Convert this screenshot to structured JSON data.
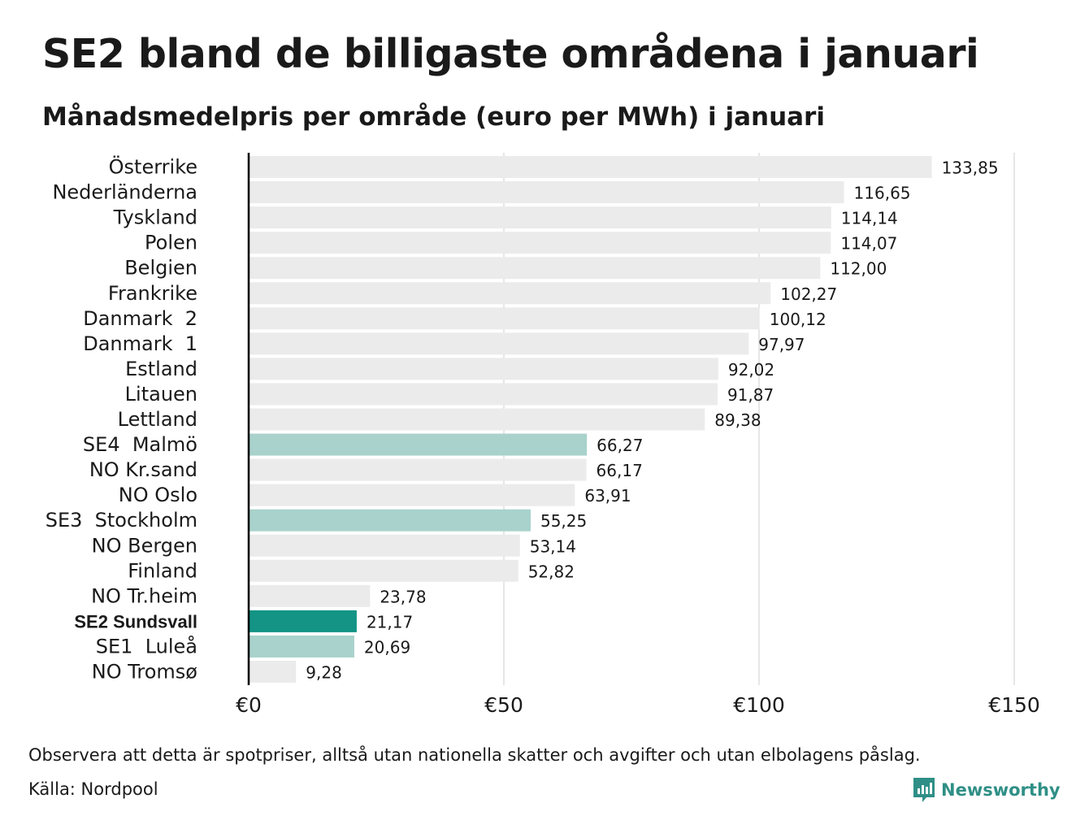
{
  "title": "SE2 bland de billigaste områdena i januari",
  "subtitle": "Månadsmedelpris per område (euro per MWh) i januari",
  "note": "Observera att detta är spotpriser, alltså utan nationella skatter och avgifter och utan elbolagens påslag.",
  "source": "Källa: Nordpool",
  "logo_text": "Newsworthy",
  "colors": {
    "default": "#ebebeb",
    "swedish": "#a8d2cb",
    "highlight": "#139485",
    "grid": "#cccccc",
    "axis": "#000000",
    "logo": "#2f8f86"
  },
  "chart_data": {
    "type": "bar",
    "orientation": "horizontal",
    "categories": [
      "Österrike",
      "Nederländerna",
      "Tyskland",
      "Polen",
      "Belgien",
      "Frankrike",
      "Danmark  2",
      "Danmark  1",
      "Estland",
      "Litauen",
      "Lettland",
      "SE4  Malmö",
      "NO Kr.sand",
      "NO Oslo",
      "SE3  Stockholm",
      "NO Bergen",
      "Finland",
      "NO Tr.heim",
      "SE2 Sundsvall",
      "SE1  Luleå",
      "NO Tromsø"
    ],
    "values": [
      133.85,
      116.65,
      114.14,
      114.07,
      112.0,
      102.27,
      100.12,
      97.97,
      92.02,
      91.87,
      89.38,
      66.27,
      66.17,
      63.91,
      55.25,
      53.14,
      52.82,
      23.78,
      21.17,
      20.69,
      9.28
    ],
    "value_labels": [
      "133,85",
      "116,65",
      "114,14",
      "114,07",
      "112,00",
      "102,27",
      "100,12",
      "97,97",
      "92,02",
      "91,87",
      "89,38",
      "66,27",
      "66,17",
      "63,91",
      "55,25",
      "53,14",
      "52,82",
      "23,78",
      "21,17",
      "20,69",
      "9,28"
    ],
    "bar_color_group": [
      "default",
      "default",
      "default",
      "default",
      "default",
      "default",
      "default",
      "default",
      "default",
      "default",
      "default",
      "swedish",
      "default",
      "default",
      "swedish",
      "default",
      "default",
      "default",
      "highlight",
      "swedish",
      "default"
    ],
    "bold_label": "SE2 Sundsvall",
    "xlim": [
      0,
      150
    ],
    "xticks": [
      0,
      50,
      100,
      150
    ],
    "xtick_labels": [
      "€0",
      "€50",
      "€100",
      "€150"
    ],
    "grid": true,
    "legend": "none"
  }
}
